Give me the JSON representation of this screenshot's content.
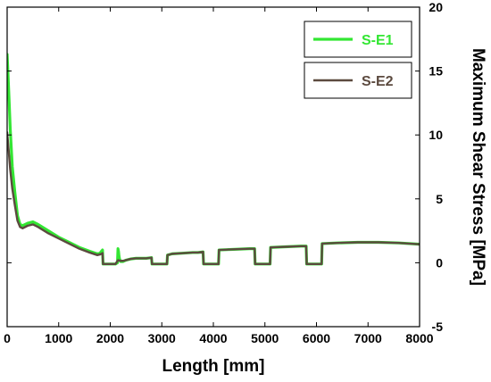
{
  "chart_data": {
    "type": "line",
    "title": "",
    "xlabel": "Length [mm]",
    "ylabel": "Maximum Shear Stress [MPa]",
    "xlim": [
      0,
      8000
    ],
    "ylim": [
      -5,
      20
    ],
    "x_ticks": [
      0,
      1000,
      2000,
      3000,
      4000,
      5000,
      6000,
      7000,
      8000
    ],
    "y_ticks": [
      -5,
      0,
      5,
      10,
      15,
      20
    ],
    "x_tick_labels": [
      "0",
      "1000",
      "2000",
      "3000",
      "4000",
      "5000",
      "6000",
      "7000",
      "8000"
    ],
    "y_tick_labels": [
      "-5",
      "0",
      "5",
      "10",
      "15",
      "20"
    ],
    "y_axis_side": "right",
    "grid": false,
    "legend_position": "top-right",
    "series": [
      {
        "name": "S-E1",
        "color": "#33e633",
        "x": [
          0,
          30,
          60,
          100,
          150,
          200,
          250,
          300,
          400,
          500,
          600,
          800,
          1000,
          1200,
          1400,
          1600,
          1750,
          1800,
          1830,
          1850,
          1860,
          1900,
          2000,
          2100,
          2140,
          2150,
          2160,
          2170,
          2180,
          2200,
          2250,
          2300,
          2400,
          2500,
          2600,
          2700,
          2800,
          2810,
          3000,
          3100,
          3110,
          3200,
          3400,
          3600,
          3700,
          3800,
          3810,
          4000,
          4100,
          4110,
          4400,
          4700,
          4800,
          4810,
          5000,
          5100,
          5110,
          5400,
          5700,
          5800,
          5810,
          6000,
          6100,
          6110,
          6400,
          6800,
          7200,
          7600,
          8000
        ],
        "y": [
          16.3,
          13.5,
          10.5,
          7.5,
          5.5,
          3.7,
          3.0,
          2.9,
          3.1,
          3.2,
          3.0,
          2.5,
          2.0,
          1.6,
          1.2,
          0.9,
          0.7,
          0.75,
          0.9,
          1.0,
          -0.1,
          -0.1,
          -0.1,
          -0.1,
          0.0,
          1.1,
          0.9,
          0.5,
          0.3,
          0.1,
          0.1,
          0.2,
          0.3,
          0.35,
          0.35,
          0.35,
          0.4,
          -0.1,
          -0.1,
          -0.1,
          0.6,
          0.7,
          0.75,
          0.8,
          0.8,
          0.85,
          -0.1,
          -0.1,
          -0.1,
          1.0,
          1.05,
          1.1,
          1.1,
          -0.1,
          -0.1,
          -0.1,
          1.2,
          1.25,
          1.3,
          1.3,
          -0.1,
          -0.1,
          -0.1,
          1.5,
          1.55,
          1.6,
          1.6,
          1.55,
          1.45
        ]
      },
      {
        "name": "S-E2",
        "color": "#5c4a3f",
        "x": [
          0,
          30,
          60,
          100,
          150,
          200,
          250,
          300,
          400,
          500,
          600,
          800,
          1000,
          1200,
          1400,
          1600,
          1750,
          1800,
          1830,
          1850,
          1860,
          1900,
          2000,
          2100,
          2150,
          2200,
          2250,
          2300,
          2400,
          2500,
          2600,
          2700,
          2800,
          2810,
          3000,
          3100,
          3110,
          3200,
          3400,
          3600,
          3700,
          3800,
          3810,
          4000,
          4100,
          4110,
          4400,
          4700,
          4800,
          4810,
          5000,
          5100,
          5110,
          5400,
          5700,
          5800,
          5810,
          6000,
          6100,
          6110,
          6400,
          6800,
          7200,
          7600,
          8000
        ],
        "y": [
          10.2,
          8.8,
          7.3,
          5.8,
          4.5,
          3.3,
          2.8,
          2.7,
          2.9,
          3.0,
          2.8,
          2.3,
          1.9,
          1.5,
          1.1,
          0.8,
          0.6,
          0.65,
          0.7,
          0.75,
          -0.1,
          -0.1,
          -0.1,
          -0.1,
          0.2,
          0.15,
          0.15,
          0.2,
          0.3,
          0.35,
          0.35,
          0.35,
          0.4,
          -0.1,
          -0.1,
          -0.1,
          0.6,
          0.7,
          0.75,
          0.8,
          0.8,
          0.85,
          -0.1,
          -0.1,
          -0.1,
          1.0,
          1.05,
          1.1,
          1.1,
          -0.1,
          -0.1,
          -0.1,
          1.2,
          1.25,
          1.3,
          1.3,
          -0.1,
          -0.1,
          -0.1,
          1.5,
          1.55,
          1.6,
          1.6,
          1.55,
          1.45
        ]
      }
    ]
  }
}
